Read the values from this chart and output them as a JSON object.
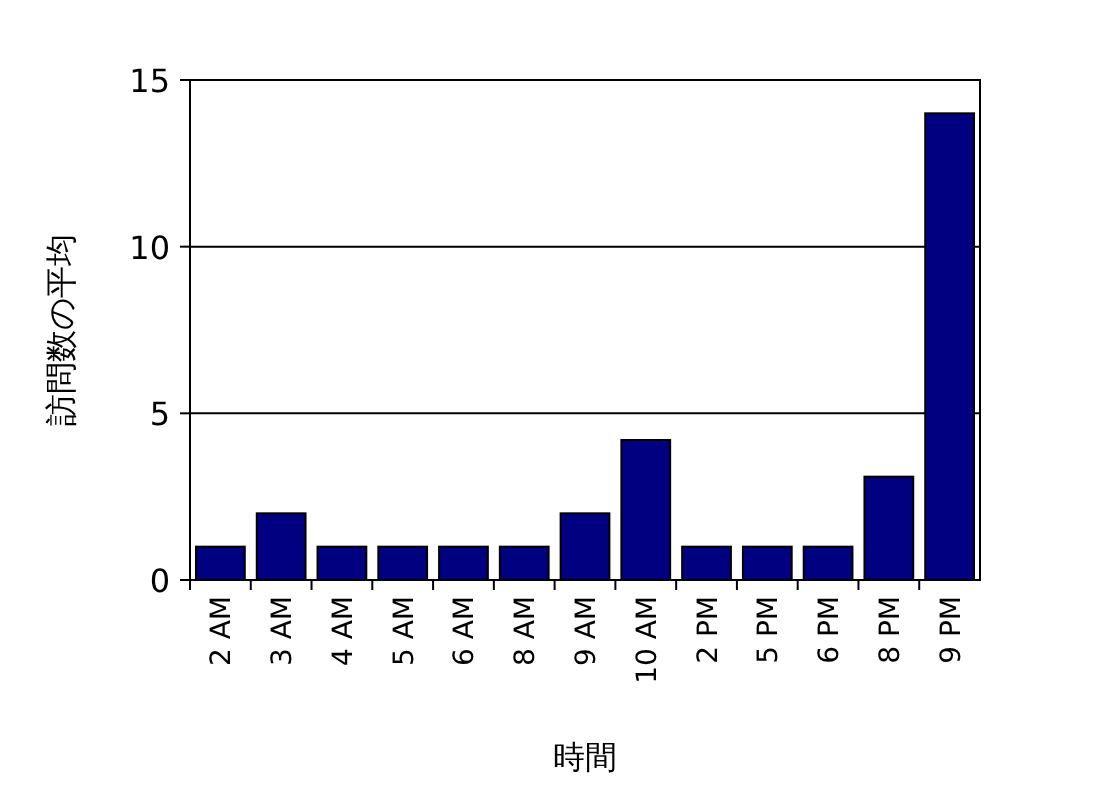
{
  "chart_data": {
    "type": "bar",
    "xlabel": "時間",
    "ylabel": "訪問数の平均",
    "categories": [
      "2 AM",
      "3 AM",
      "4 AM",
      "5 AM",
      "6 AM",
      "8 AM",
      "9 AM",
      "10 AM",
      "2 PM",
      "5 PM",
      "6 PM",
      "8 PM",
      "9 PM"
    ],
    "values": [
      1,
      2,
      1,
      1,
      1,
      1,
      2,
      4.2,
      1,
      1,
      1,
      3.1,
      14
    ],
    "color": "#000080",
    "ylim": [
      0,
      15
    ],
    "yticks": [
      0,
      5,
      10,
      15
    ],
    "grid": "y"
  }
}
